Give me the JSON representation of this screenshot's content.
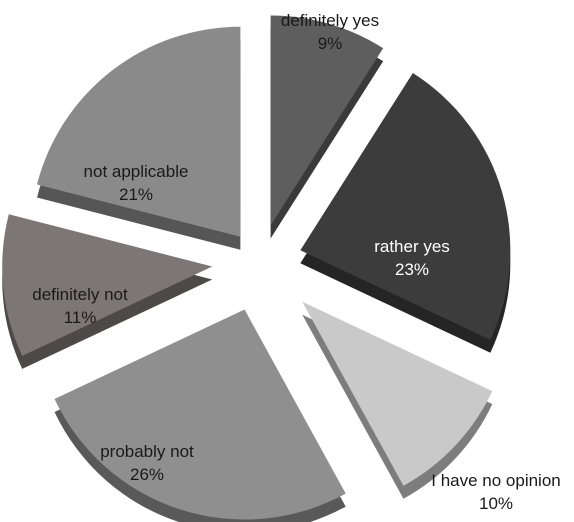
{
  "chart_data": {
    "type": "pie",
    "title": "",
    "exploded": true,
    "three_d": true,
    "legend": "none",
    "slices": [
      {
        "label": "definitely yes",
        "value": 9,
        "value_label": "9%",
        "color": "#5e5e5e",
        "label_color": "#1a1a1a"
      },
      {
        "label": "rather yes",
        "value": 23,
        "value_label": "23%",
        "color": "#3c3c3c",
        "label_color": "#ffffff"
      },
      {
        "label": "I have no opinion",
        "value": 10,
        "value_label": "10%",
        "color": "#c9c9c9",
        "label_color": "#1a1a1a"
      },
      {
        "label": "probably not",
        "value": 26,
        "value_label": "26%",
        "color": "#8f8f8f",
        "label_color": "#1a1a1a"
      },
      {
        "label": "definitely not",
        "value": 11,
        "value_label": "11%",
        "color": "#7d7676",
        "label_color": "#1a1a1a"
      },
      {
        "label": "not applicable",
        "value": 21,
        "value_label": "21%",
        "color": "#8a8a8a",
        "label_color": "#1a1a1a"
      }
    ]
  }
}
